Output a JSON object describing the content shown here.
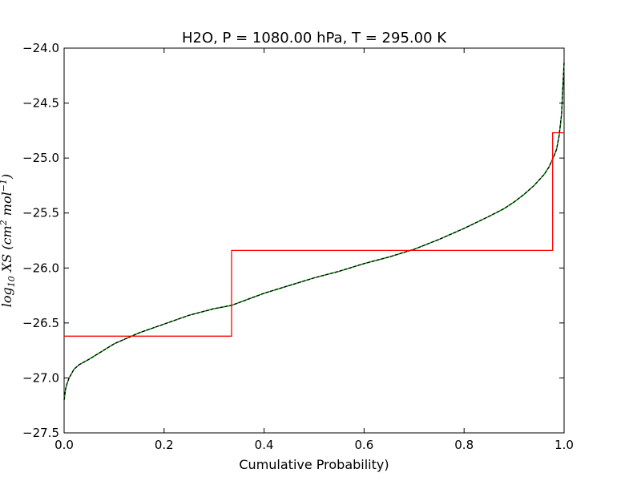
{
  "chart_data": {
    "type": "line",
    "title": "H2O, P = 1080.00 hPa, T = 295.00 K",
    "xlabel": "Cumulative Probability)",
    "ylabel": "log10 XS (cm2 mol-1)",
    "xlim": [
      0.0,
      1.0
    ],
    "ylim": [
      -27.5,
      -24.0
    ],
    "xticks": [
      0.0,
      0.2,
      0.4,
      0.6,
      0.8,
      1.0
    ],
    "xtick_labels": [
      "0.0",
      "0.2",
      "0.4",
      "0.6",
      "0.8",
      "1.0"
    ],
    "yticks": [
      -24.0,
      -24.5,
      -25.0,
      -25.5,
      -26.0,
      -26.5,
      -27.0,
      -27.5
    ],
    "ytick_labels": [
      "−24.0",
      "−24.5",
      "−25.0",
      "−25.5",
      "−26.0",
      "−26.5",
      "−27.0",
      "−27.5"
    ],
    "grid": false,
    "legend": "none",
    "series": [
      {
        "kind": "curve",
        "color": "#000000",
        "x": [
          0.0,
          0.003,
          0.006,
          0.01,
          0.015,
          0.02,
          0.03,
          0.05,
          0.075,
          0.1,
          0.15,
          0.2,
          0.25,
          0.3,
          0.335,
          0.4,
          0.45,
          0.5,
          0.55,
          0.6,
          0.65,
          0.7,
          0.75,
          0.8,
          0.85,
          0.88,
          0.9,
          0.92,
          0.94,
          0.96,
          0.97,
          0.98,
          0.985,
          0.99,
          0.995,
          1.0
        ],
        "y": [
          -27.2,
          -27.1,
          -27.05,
          -27.0,
          -26.96,
          -26.92,
          -26.88,
          -26.83,
          -26.76,
          -26.69,
          -26.59,
          -26.51,
          -26.43,
          -26.37,
          -26.34,
          -26.23,
          -26.16,
          -26.09,
          -26.03,
          -25.96,
          -25.9,
          -25.83,
          -25.74,
          -25.64,
          -25.53,
          -25.46,
          -25.4,
          -25.33,
          -25.25,
          -25.15,
          -25.08,
          -24.98,
          -24.92,
          -24.8,
          -24.6,
          -24.13
        ]
      },
      {
        "kind": "step",
        "color": "#ff0000",
        "x": [
          0.0,
          0.335,
          0.335,
          0.977,
          0.977,
          1.0
        ],
        "y": [
          -26.62,
          -26.62,
          -25.84,
          -25.84,
          -24.77,
          -24.77
        ]
      }
    ]
  }
}
